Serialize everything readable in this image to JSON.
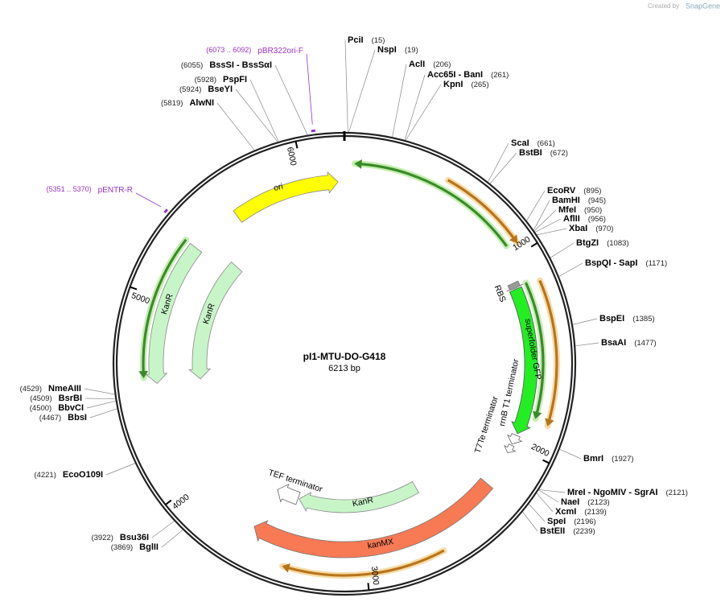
{
  "credit": "Created by",
  "brand": "SnapGene",
  "title": "pI1-MTU-DO-G418",
  "size": "6213 bp",
  "ticks": [
    1000,
    2000,
    3000,
    4000,
    5000,
    6000
  ],
  "enzymes": [
    {
      "name": "PciI",
      "position": "(15)"
    },
    {
      "name": "NspI",
      "position": "(19)"
    },
    {
      "name": "AclI",
      "position": "(206)"
    },
    {
      "name": "Acc65I - BanI",
      "position": "(261)"
    },
    {
      "name": "KpnI",
      "position": "(265)"
    },
    {
      "name": "ScaI",
      "position": "(661)"
    },
    {
      "name": "BstBI",
      "position": "(672)"
    },
    {
      "name": "EcoRV",
      "position": "(895)"
    },
    {
      "name": "BamHI",
      "position": "(945)"
    },
    {
      "name": "MfeI",
      "position": "(950)"
    },
    {
      "name": "AflII",
      "position": "(956)"
    },
    {
      "name": "XbaI",
      "position": "(970)"
    },
    {
      "name": "BtgZI",
      "position": "(1083)"
    },
    {
      "name": "BspQI - SapI",
      "position": "(1171)"
    },
    {
      "name": "BspEI",
      "position": "(1385)"
    },
    {
      "name": "BsaAI",
      "position": "(1477)"
    },
    {
      "name": "BmrI",
      "position": "(1927)"
    },
    {
      "name": "MreI - NgoMIV - SgrAI",
      "position": "(2121)"
    },
    {
      "name": "NaeI",
      "position": "(2123)"
    },
    {
      "name": "XcmI",
      "position": "(2139)"
    },
    {
      "name": "SpeI",
      "position": "(2196)"
    },
    {
      "name": "BstEII",
      "position": "(2239)"
    },
    {
      "name": "Bsu36I",
      "position": "(3922)"
    },
    {
      "name": "BglII",
      "position": "(3869)"
    },
    {
      "name": "EcoO109I",
      "position": "(4221)"
    },
    {
      "name": "NmeAIII",
      "position": "(4529)"
    },
    {
      "name": "BsrBI",
      "position": "(4509)"
    },
    {
      "name": "BbvCI",
      "position": "(4500)"
    },
    {
      "name": "BbsI",
      "position": "(4467)"
    },
    {
      "name": "AlwNI",
      "position": "(5819)"
    },
    {
      "name": "BseYI",
      "position": "(5924)"
    },
    {
      "name": "PspFI",
      "position": "(5928)"
    },
    {
      "name": "BssSI - BssSαI",
      "position": "(6055)"
    }
  ],
  "primers": [
    {
      "name": "pBR322ori-F",
      "range": "(6073 .. 6092)"
    },
    {
      "name": "pENTR-R",
      "range": "(5351 .. 5370)"
    }
  ],
  "features": [
    {
      "label": "ori"
    },
    {
      "label": "KanR"
    },
    {
      "label": "KanR"
    },
    {
      "label": "RBS"
    },
    {
      "label": "superfolder GFP"
    },
    {
      "label": "rrnB T1 terminator"
    },
    {
      "label": "T7Te terminator"
    },
    {
      "label": "TEF terminator"
    },
    {
      "label": "KanR"
    },
    {
      "label": "kanMX"
    }
  ]
}
